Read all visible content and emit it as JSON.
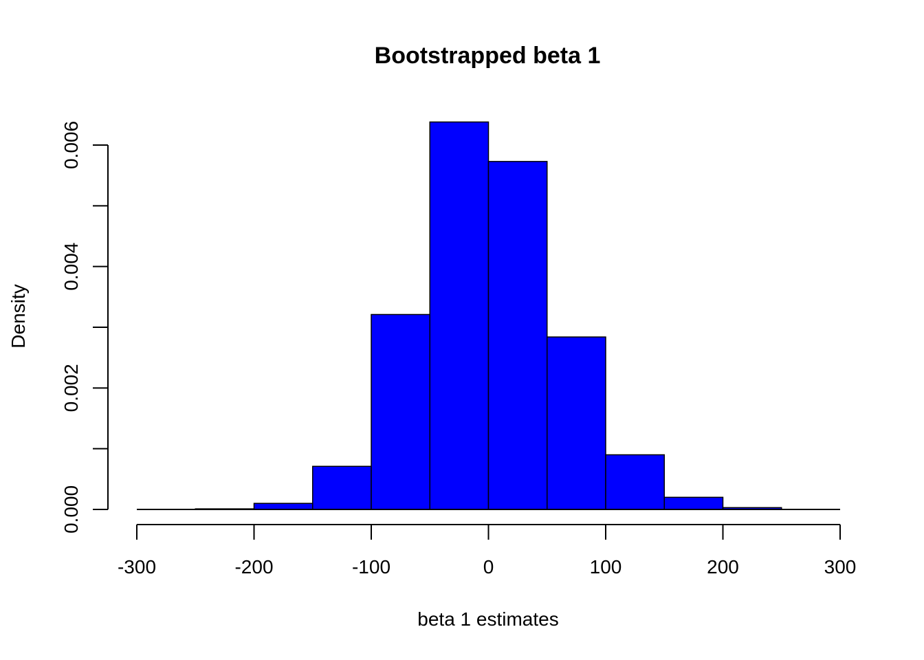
{
  "chart_data": {
    "type": "bar",
    "title": "Bootstrapped beta 1",
    "xlabel": "beta 1  estimates",
    "ylabel": "Density",
    "bar_color": "#0000ff",
    "border_color": "#000000",
    "xlim": [
      -300,
      300
    ],
    "ylim": [
      0,
      0.006
    ],
    "x_ticks": [
      -300,
      -200,
      -100,
      0,
      100,
      200,
      300
    ],
    "x_tick_labels": [
      "-300",
      "-200",
      "-100",
      "0",
      "100",
      "200",
      "300"
    ],
    "y_ticks": [
      0,
      0.001,
      0.002,
      0.003,
      0.004,
      0.005,
      0.006
    ],
    "y_tick_labels": [
      "0.000",
      "",
      "0.002",
      "",
      "0.004",
      "",
      "0.006"
    ],
    "grid": false,
    "bins": [
      {
        "x0": -300,
        "x1": -250,
        "density": 0.0
      },
      {
        "x0": -250,
        "x1": -200,
        "density": 1e-05
      },
      {
        "x0": -200,
        "x1": -150,
        "density": 0.0001
      },
      {
        "x0": -150,
        "x1": -100,
        "density": 0.00071
      },
      {
        "x0": -100,
        "x1": -50,
        "density": 0.00321
      },
      {
        "x0": -50,
        "x1": 0,
        "density": 0.00638
      },
      {
        "x0": 0,
        "x1": 50,
        "density": 0.00573
      },
      {
        "x0": 50,
        "x1": 100,
        "density": 0.00284
      },
      {
        "x0": 100,
        "x1": 150,
        "density": 0.0009
      },
      {
        "x0": 150,
        "x1": 200,
        "density": 0.0002
      },
      {
        "x0": 200,
        "x1": 250,
        "density": 3e-05
      },
      {
        "x0": 250,
        "x1": 300,
        "density": 0.0
      }
    ]
  }
}
